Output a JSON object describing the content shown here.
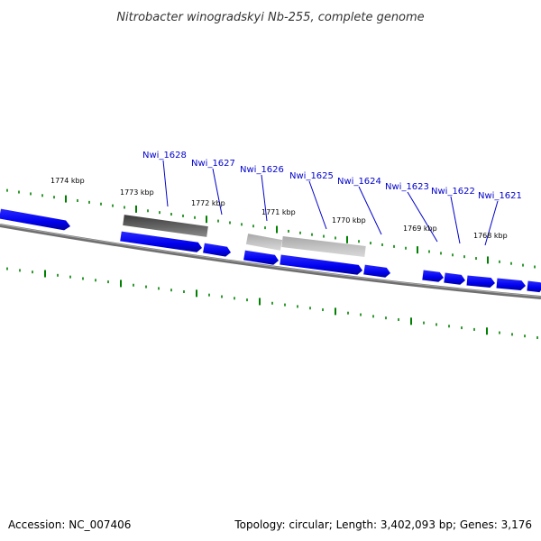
{
  "title": "Nitrobacter winogradskyi Nb-255, complete genome",
  "footer": {
    "accession": "Accession: NC_007406",
    "summary": "Topology: circular; Length: 3,402,093 bp; Genes: 3,176"
  },
  "kbp_labels": [
    "1774 kbp",
    "1773 kbp",
    "1772 kbp",
    "1771 kbp",
    "1770 kbp",
    "1769 kbp",
    "1768 kbp"
  ],
  "gene_labels": [
    "Nwi_1628",
    "Nwi_1627",
    "Nwi_1626",
    "Nwi_1625",
    "Nwi_1624",
    "Nwi_1623",
    "Nwi_1622",
    "Nwi_1621"
  ],
  "colors": {
    "gene_blue": "#0000ee",
    "label_blue": "#0000cc",
    "tick_green": "#008000",
    "backbone": "#777777",
    "dark_gene": "#555555",
    "light_gene": "#bbbbbb"
  }
}
